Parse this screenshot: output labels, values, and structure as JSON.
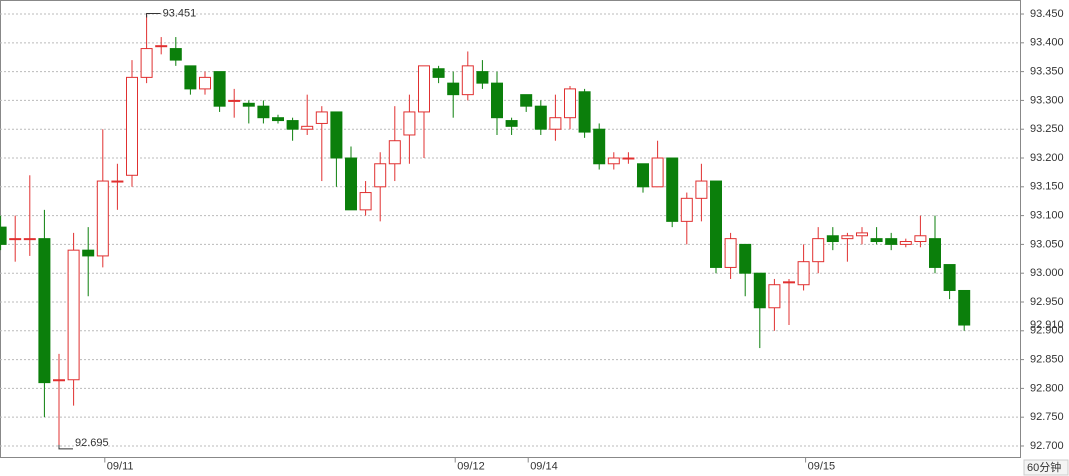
{
  "chart_data": {
    "type": "candlestick",
    "categories": [
      null,
      null,
      null,
      null,
      null,
      null,
      null,
      "09/11",
      null,
      null,
      null,
      null,
      null,
      null,
      null,
      null,
      null,
      null,
      null,
      null,
      null,
      null,
      null,
      null,
      null,
      null,
      null,
      null,
      null,
      null,
      null,
      "09/12",
      null,
      null,
      null,
      null,
      "09/14",
      null,
      null,
      null,
      null,
      null,
      null,
      null,
      null,
      null,
      null,
      null,
      null,
      null,
      null,
      null,
      null,
      null,
      null,
      "09/15",
      null,
      null,
      null,
      null,
      null,
      null,
      null,
      null,
      null,
      null,
      null
    ],
    "open": [
      93.08,
      93.06,
      93.06,
      93.06,
      92.815,
      92.815,
      93.04,
      93.03,
      93.16,
      93.17,
      93.34,
      93.395,
      93.39,
      93.36,
      93.32,
      93.35,
      93.3,
      93.295,
      93.29,
      93.27,
      93.265,
      93.25,
      93.26,
      93.28,
      93.2,
      93.11,
      93.15,
      93.19,
      93.24,
      93.28,
      93.355,
      93.33,
      93.31,
      93.35,
      93.33,
      93.265,
      93.31,
      93.29,
      93.25,
      93.27,
      93.315,
      93.25,
      93.19,
      93.2,
      93.19,
      93.15,
      93.2,
      93.09,
      93.13,
      93.16,
      93.01,
      93.05,
      93.0,
      92.94,
      92.985,
      92.98,
      93.02,
      93.065,
      93.06,
      93.065,
      93.06,
      93.06,
      93.05,
      93.055,
      93.06,
      93.015,
      92.97
    ],
    "high": [
      93.1,
      93.1,
      93.17,
      93.11,
      92.86,
      93.07,
      93.08,
      93.25,
      93.19,
      93.37,
      93.451,
      93.41,
      93.41,
      93.36,
      93.35,
      93.35,
      93.32,
      93.3,
      93.3,
      93.275,
      93.27,
      93.31,
      93.29,
      93.28,
      93.22,
      93.16,
      93.21,
      93.29,
      93.31,
      93.36,
      93.36,
      93.35,
      93.385,
      93.37,
      93.35,
      93.27,
      93.31,
      93.3,
      93.31,
      93.325,
      93.32,
      93.26,
      93.21,
      93.21,
      93.19,
      93.23,
      93.2,
      93.14,
      93.19,
      93.16,
      93.07,
      93.05,
      93.0,
      92.99,
      92.99,
      93.05,
      93.08,
      93.08,
      93.07,
      93.08,
      93.08,
      93.07,
      93.06,
      93.1,
      93.1,
      93.015,
      92.97
    ],
    "low": [
      93.04,
      93.02,
      93.03,
      92.75,
      92.695,
      92.77,
      92.96,
      93.01,
      93.11,
      93.15,
      93.33,
      93.38,
      93.36,
      93.31,
      93.31,
      93.28,
      93.27,
      93.26,
      93.26,
      93.26,
      93.23,
      93.24,
      93.16,
      93.15,
      93.11,
      93.1,
      93.09,
      93.16,
      93.19,
      93.2,
      93.33,
      93.27,
      93.3,
      93.32,
      93.24,
      93.24,
      93.28,
      93.24,
      93.23,
      93.25,
      93.235,
      93.18,
      93.18,
      93.19,
      93.14,
      93.15,
      93.08,
      93.05,
      93.09,
      93.0,
      92.99,
      92.96,
      92.87,
      92.9,
      92.91,
      92.97,
      93.0,
      93.04,
      93.02,
      93.05,
      93.05,
      93.04,
      93.045,
      93.045,
      93.0,
      92.955,
      92.9
    ],
    "close": [
      93.05,
      93.06,
      93.06,
      92.81,
      92.815,
      93.04,
      93.03,
      93.16,
      93.16,
      93.34,
      93.39,
      93.395,
      93.37,
      93.32,
      93.34,
      93.29,
      93.3,
      93.29,
      93.27,
      93.265,
      93.25,
      93.255,
      93.28,
      93.2,
      93.11,
      93.14,
      93.19,
      93.23,
      93.28,
      93.36,
      93.34,
      93.31,
      93.36,
      93.33,
      93.27,
      93.255,
      93.29,
      93.25,
      93.27,
      93.32,
      93.245,
      93.19,
      93.2,
      93.2,
      93.15,
      93.2,
      93.09,
      93.13,
      93.16,
      93.01,
      93.06,
      93.0,
      92.94,
      92.98,
      92.985,
      93.02,
      93.06,
      93.055,
      93.065,
      93.07,
      93.055,
      93.05,
      93.055,
      93.065,
      93.01,
      92.97,
      92.91
    ],
    "up_color": "#e03030",
    "down_color": "#0b7f0b",
    "ylim": [
      92.68,
      93.47
    ],
    "yticks": [
      {
        "value": 92.7,
        "label": "92.700"
      },
      {
        "value": 92.75,
        "label": "92.750"
      },
      {
        "value": 92.8,
        "label": "92.800"
      },
      {
        "value": 92.85,
        "label": "92.850"
      },
      {
        "value": 92.9,
        "label": "92.900"
      },
      {
        "value": 92.95,
        "label": "92.950"
      },
      {
        "value": 93.0,
        "label": "93.000"
      },
      {
        "value": 93.05,
        "label": "93.050"
      },
      {
        "value": 93.1,
        "label": "93.100"
      },
      {
        "value": 93.15,
        "label": "93.150"
      },
      {
        "value": 93.2,
        "label": "93.200"
      },
      {
        "value": 93.25,
        "label": "93.250"
      },
      {
        "value": 93.3,
        "label": "93.300"
      },
      {
        "value": 93.35,
        "label": "93.350"
      },
      {
        "value": 93.4,
        "label": "93.400"
      },
      {
        "value": 93.45,
        "label": "93.450"
      }
    ],
    "grid": true,
    "max_annotation": {
      "value": 93.451,
      "label": "93.451"
    },
    "min_annotation": {
      "value": 92.695,
      "label": "92.695"
    },
    "last_price": {
      "value": 92.91,
      "label": "92.910"
    },
    "period_label": "60分钟"
  }
}
